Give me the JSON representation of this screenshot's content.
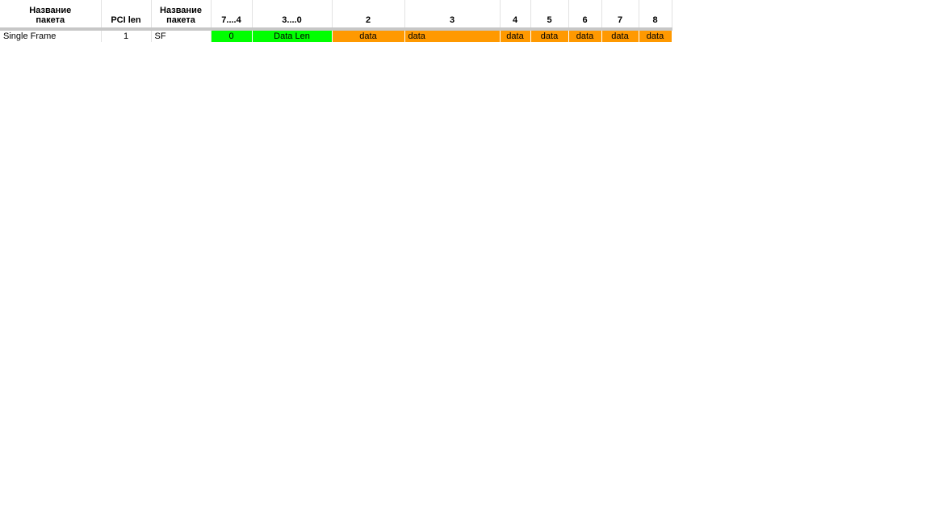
{
  "colors": {
    "green": "#00ff00",
    "orange": "#ff9900",
    "separator": "#c7c7c7"
  },
  "header": {
    "name_col": "Название пакета",
    "pci_len": "PCI len",
    "short_name": "Название пакета",
    "bits_hi": "7....4",
    "bits_lo": "3....0",
    "b2": "2",
    "b3": "3",
    "b4": "4",
    "b5": "5",
    "b6": "6",
    "b7": "7",
    "b8": "8"
  },
  "rows": [
    {
      "name": "Single Frame",
      "pci_len": "1",
      "short_name": "SF",
      "bits_hi": "0",
      "bits_lo": "Data Len",
      "b2": "data",
      "b3": "data",
      "b4": "data",
      "b5": "data",
      "b6": "data",
      "b7": "data",
      "b8": "data"
    }
  ]
}
